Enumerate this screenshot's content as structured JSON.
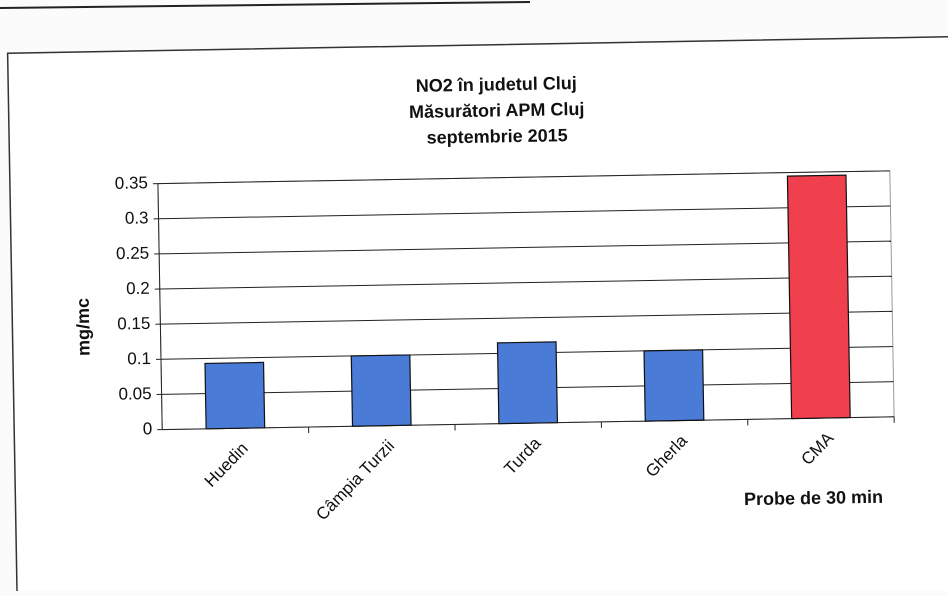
{
  "chart_data": {
    "type": "bar",
    "title": [
      "NO2 în judetul Cluj",
      "Măsurători APM Cluj",
      "septembrie 2015"
    ],
    "y_label": "mg/mc",
    "x_label": "Probe de 30 min",
    "categories": [
      "Huedin",
      "Câmpia Turzii",
      "Turda",
      "Gherla",
      "CMA"
    ],
    "values": [
      0.093,
      0.1,
      0.115,
      0.1,
      0.345
    ],
    "colors": [
      "#4a7bd6",
      "#4a7bd6",
      "#4a7bd6",
      "#4a7bd6",
      "#f0404e"
    ],
    "ylim": [
      0,
      0.35
    ],
    "yticks": [
      0,
      0.05,
      0.1,
      0.15,
      0.2,
      0.25,
      0.3,
      0.35
    ],
    "grid": true
  }
}
